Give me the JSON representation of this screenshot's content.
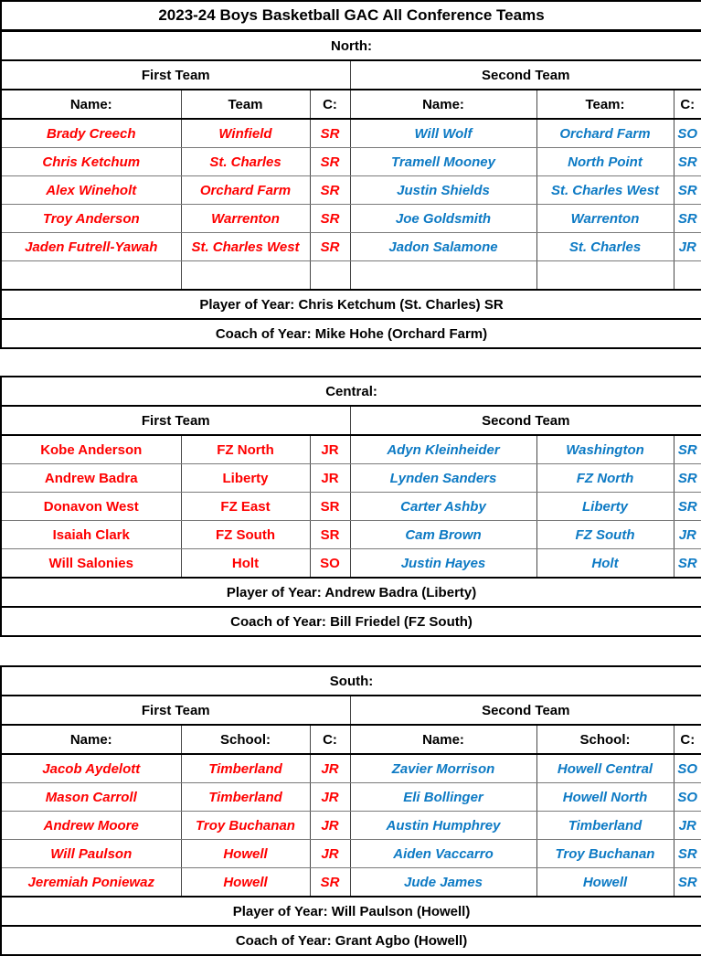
{
  "title": "2023-24 Boys Basketball GAC All Conference Teams",
  "colors": {
    "first_team_text": "#fe0000",
    "second_team_text": "#0d7ac4",
    "header_text": "#000000",
    "grid_thin": "#7a7a7a",
    "grid_thick": "#000000"
  },
  "sections": [
    {
      "label": "North:",
      "first_team_label": "First Team",
      "second_team_label": "Second Team",
      "show_headers": true,
      "first_headers": [
        "Name:",
        "Team",
        "C:"
      ],
      "second_headers": [
        "Name:",
        "Team:",
        "C:"
      ],
      "first_italic": true,
      "second_italic": true,
      "trailing_empty_row": true,
      "first_team": [
        {
          "name": "Brady Creech",
          "team": "Winfield",
          "cls": "SR"
        },
        {
          "name": "Chris Ketchum",
          "team": "St. Charles",
          "cls": "SR"
        },
        {
          "name": "Alex Wineholt",
          "team": "Orchard Farm",
          "cls": "SR"
        },
        {
          "name": "Troy Anderson",
          "team": "Warrenton",
          "cls": "SR"
        },
        {
          "name": "Jaden Futrell-Yawah",
          "team": "St. Charles West",
          "cls": "SR"
        }
      ],
      "second_team": [
        {
          "name": "Will Wolf",
          "team": "Orchard Farm",
          "cls": "SO"
        },
        {
          "name": "Tramell Mooney",
          "team": "North Point",
          "cls": "SR"
        },
        {
          "name": "Justin Shields",
          "team": "St. Charles West",
          "cls": "SR"
        },
        {
          "name": "Joe Goldsmith",
          "team": "Warrenton",
          "cls": "SR"
        },
        {
          "name": "Jadon Salamone",
          "team": "St. Charles",
          "cls": "JR"
        }
      ],
      "player_of_year": "Player of Year: Chris Ketchum (St. Charles) SR",
      "coach_of_year": "Coach of Year: Mike Hohe (Orchard Farm)"
    },
    {
      "label": "Central:",
      "first_team_label": "First Team",
      "second_team_label": "Second Team",
      "show_headers": false,
      "first_headers": [],
      "second_headers": [],
      "first_italic": false,
      "second_italic": true,
      "trailing_empty_row": false,
      "first_team": [
        {
          "name": "Kobe Anderson",
          "team": "FZ North",
          "cls": "JR"
        },
        {
          "name": "Andrew Badra",
          "team": "Liberty",
          "cls": "JR"
        },
        {
          "name": "Donavon West",
          "team": "FZ East",
          "cls": "SR"
        },
        {
          "name": "Isaiah Clark",
          "team": "FZ South",
          "cls": "SR"
        },
        {
          "name": "Will Salonies",
          "team": "Holt",
          "cls": "SO"
        }
      ],
      "second_team": [
        {
          "name": "Adyn Kleinheider",
          "team": "Washington",
          "cls": "SR"
        },
        {
          "name": "Lynden Sanders",
          "team": "FZ North",
          "cls": "SR"
        },
        {
          "name": "Carter Ashby",
          "team": "Liberty",
          "cls": "SR"
        },
        {
          "name": "Cam Brown",
          "team": "FZ South",
          "cls": "JR"
        },
        {
          "name": "Justin Hayes",
          "team": "Holt",
          "cls": "SR"
        }
      ],
      "player_of_year": "Player of Year: Andrew Badra (Liberty)",
      "coach_of_year": "Coach of Year: Bill Friedel (FZ South)"
    },
    {
      "label": "South:",
      "first_team_label": "First Team",
      "second_team_label": "Second Team",
      "show_headers": true,
      "first_headers": [
        "Name:",
        "School:",
        "C:"
      ],
      "second_headers": [
        "Name:",
        "School:",
        "C:"
      ],
      "first_italic": true,
      "second_italic": true,
      "trailing_empty_row": false,
      "first_team": [
        {
          "name": "Jacob Aydelott",
          "team": "Timberland",
          "cls": "JR"
        },
        {
          "name": "Mason Carroll",
          "team": "Timberland",
          "cls": "JR"
        },
        {
          "name": "Andrew Moore",
          "team": "Troy Buchanan",
          "cls": "JR"
        },
        {
          "name": "Will Paulson",
          "team": "Howell",
          "cls": "JR"
        },
        {
          "name": "Jeremiah Poniewaz",
          "team": "Howell",
          "cls": "SR"
        }
      ],
      "second_team": [
        {
          "name": "Zavier Morrison",
          "team": "Howell Central",
          "cls": "SO"
        },
        {
          "name": "Eli Bollinger",
          "team": "Howell North",
          "cls": "SO"
        },
        {
          "name": "Austin Humphrey",
          "team": "Timberland",
          "cls": "JR"
        },
        {
          "name": "Aiden Vaccarro",
          "team": "Troy Buchanan",
          "cls": "SR"
        },
        {
          "name": "Jude James",
          "team": "Howell",
          "cls": "SR"
        }
      ],
      "player_of_year": "Player of Year: Will Paulson (Howell)",
      "coach_of_year": "Coach of Year: Grant Agbo (Howell)"
    }
  ]
}
